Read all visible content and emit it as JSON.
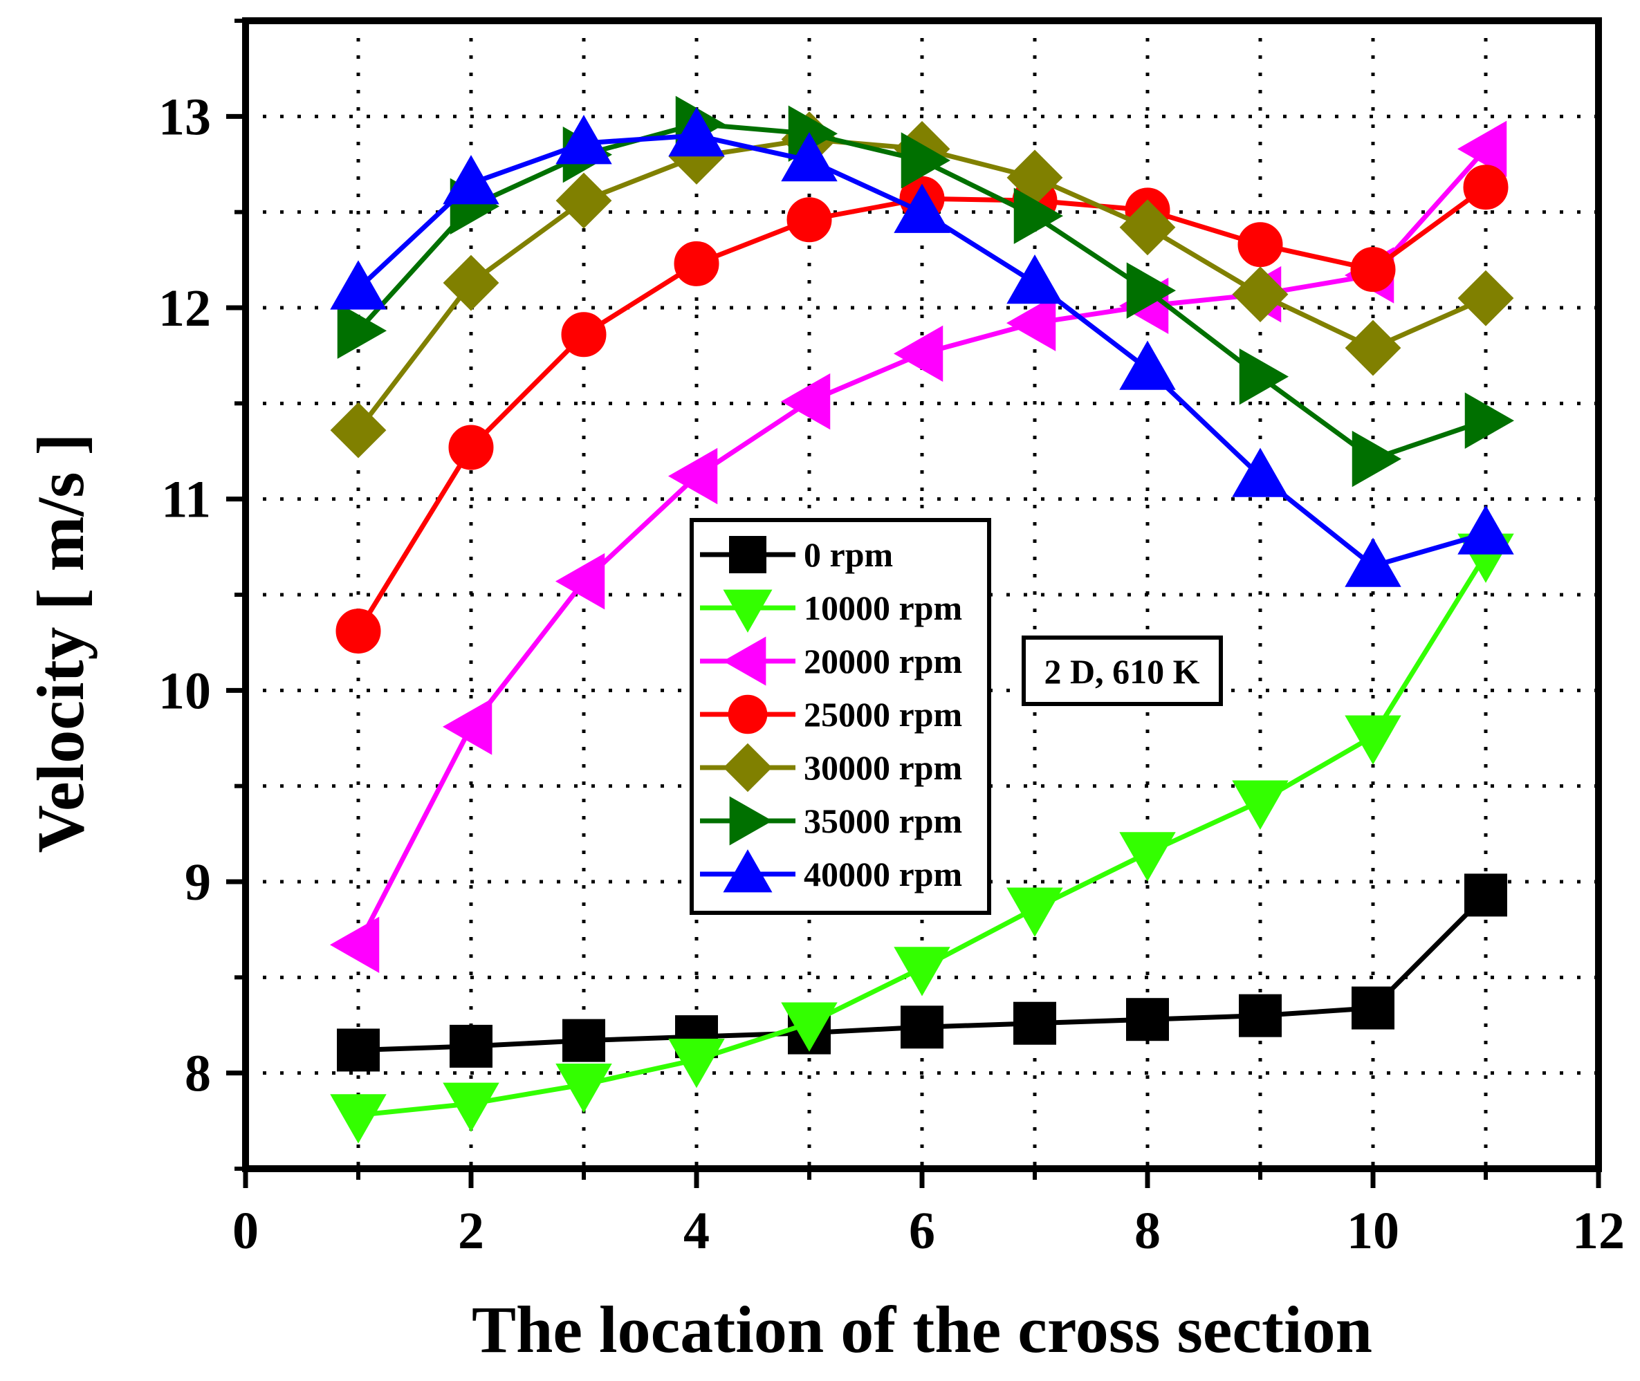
{
  "chart_data": {
    "type": "line",
    "xlabel": "The location of the cross section",
    "ylabel": "Velocity [ m/s ]",
    "xlim": [
      0,
      12
    ],
    "ylim": [
      7.5,
      13.5
    ],
    "xticks": [
      0,
      2,
      4,
      6,
      8,
      10,
      12
    ],
    "yticks": [
      8,
      9,
      10,
      11,
      12,
      13
    ],
    "grid": true,
    "legend_position": "center",
    "annotation": "2 D, 610 K",
    "x": [
      1,
      2,
      3,
      4,
      5,
      6,
      7,
      8,
      9,
      10,
      11
    ],
    "series": [
      {
        "name": "0 rpm",
        "color": "#000000",
        "marker": "square",
        "values": [
          8.12,
          8.14,
          8.17,
          8.19,
          8.21,
          8.24,
          8.26,
          8.28,
          8.3,
          8.34,
          8.93
        ]
      },
      {
        "name": "10000 rpm",
        "color": "#33ff00",
        "marker": "triangle-down",
        "values": [
          7.78,
          7.84,
          7.94,
          8.07,
          8.26,
          8.55,
          8.86,
          9.15,
          9.42,
          9.76,
          10.71
        ]
      },
      {
        "name": "20000 rpm",
        "color": "#ff00ff",
        "marker": "triangle-left",
        "values": [
          8.67,
          9.81,
          10.57,
          11.12,
          11.51,
          11.76,
          11.92,
          12.01,
          12.07,
          12.17,
          12.83
        ]
      },
      {
        "name": "25000 rpm",
        "color": "#ff0000",
        "marker": "circle",
        "values": [
          10.31,
          11.27,
          11.86,
          12.23,
          12.46,
          12.57,
          12.56,
          12.51,
          12.33,
          12.2,
          12.63
        ]
      },
      {
        "name": "30000 rpm",
        "color": "#808000",
        "marker": "diamond",
        "values": [
          11.36,
          12.13,
          12.56,
          12.79,
          12.88,
          12.83,
          12.68,
          12.42,
          12.07,
          11.79,
          12.05
        ]
      },
      {
        "name": "35000 rpm",
        "color": "#007000",
        "marker": "triangle-right",
        "values": [
          11.88,
          12.53,
          12.8,
          12.96,
          12.91,
          12.77,
          12.48,
          12.09,
          11.64,
          11.21,
          11.41
        ]
      },
      {
        "name": "40000 rpm",
        "color": "#0000ff",
        "marker": "triangle-up",
        "values": [
          12.1,
          12.65,
          12.86,
          12.9,
          12.77,
          12.5,
          12.13,
          11.68,
          11.12,
          10.65,
          10.82
        ]
      }
    ]
  }
}
